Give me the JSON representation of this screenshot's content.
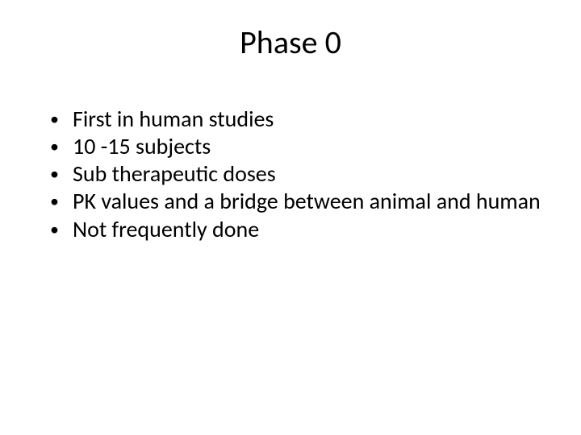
{
  "title": "Phase 0",
  "bullets": [
    "First in human studies",
    "10 -15 subjects",
    "Sub therapeutic doses",
    "PK values and a bridge between animal and human",
    "Not frequently done"
  ],
  "style": {
    "background_color": "#ffffff",
    "text_color": "#000000",
    "title_fontsize": 40,
    "body_fontsize": 28,
    "font_family": "Calibri"
  }
}
